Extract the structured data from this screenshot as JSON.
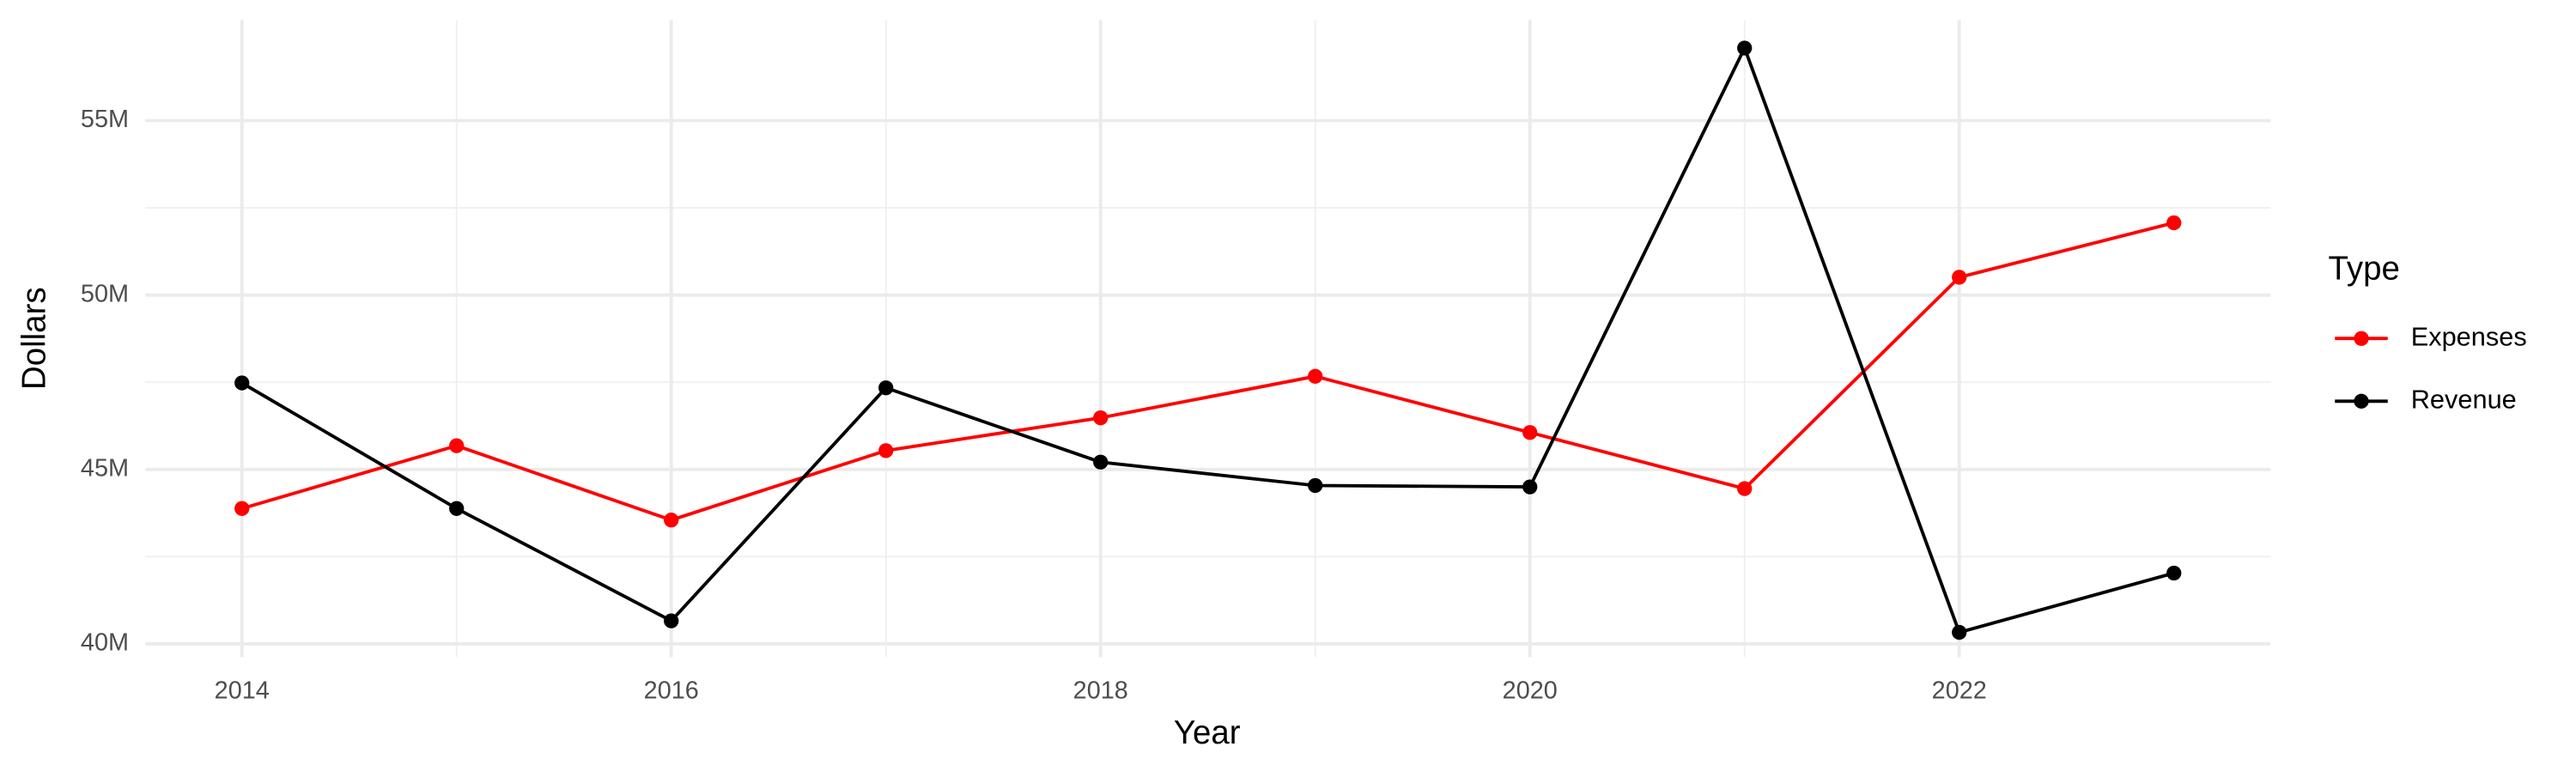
{
  "chart_data": {
    "type": "line",
    "x_label": "Year",
    "y_label": "Dollars",
    "legend_title": "Type",
    "legend_position": "right",
    "grid": true,
    "x": [
      2014,
      2015,
      2016,
      2017,
      2018,
      2019,
      2020,
      2021,
      2022,
      2023
    ],
    "series": [
      {
        "name": "Expenses",
        "color": "#ff0000",
        "values": [
          43880000,
          45680000,
          43550000,
          45540000,
          46480000,
          47670000,
          46060000,
          44450000,
          50510000,
          52070000
        ]
      },
      {
        "name": "Revenue",
        "color": "#000000",
        "values": [
          47480000,
          43880000,
          40660000,
          47340000,
          45210000,
          44540000,
          44500000,
          57080000,
          40330000,
          42030000
        ]
      }
    ],
    "xlim": [
      2013.55,
      2023.45
    ],
    "xticks": [
      2014,
      2016,
      2018,
      2020,
      2022
    ],
    "ylim": [
      39620000,
      57890000
    ],
    "yticks": [
      {
        "value": 40000000,
        "label": "40M"
      },
      {
        "value": 45000000,
        "label": "45M"
      },
      {
        "value": 50000000,
        "label": "50M"
      },
      {
        "value": 55000000,
        "label": "55M"
      }
    ]
  }
}
